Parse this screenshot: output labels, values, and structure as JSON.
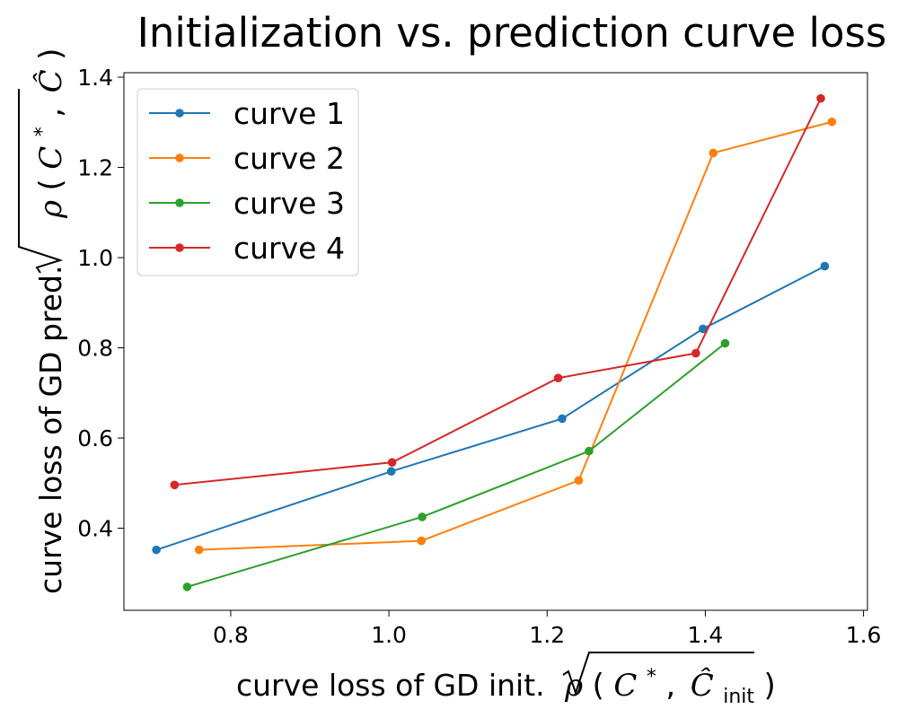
{
  "chart_data": {
    "type": "line",
    "title": "Initialization vs. prediction curve loss",
    "xlabel": {
      "text": "curve loss of GD init.",
      "formula": "√ρ(C*, Ĉinit)",
      "formula_parts": {
        "rho": "ρ",
        "c": "C",
        "star": "*",
        "comma": ",",
        "chat": "Ĉ",
        "sub": "init"
      }
    },
    "ylabel": {
      "text": "curve loss of GD pred.",
      "formula": "√ρ(C*, Ĉ)",
      "formula_parts": {
        "rho": "ρ",
        "c": "C",
        "star": "*",
        "comma": ",",
        "chat": "Ĉ"
      }
    },
    "xlim": [
      0.665,
      1.605
    ],
    "ylim": [
      0.218,
      1.41
    ],
    "xticks": [
      0.8,
      1.0,
      1.2,
      1.4,
      1.6
    ],
    "xtick_labels": [
      "0.8",
      "1.0",
      "1.2",
      "1.4",
      "1.6"
    ],
    "yticks": [
      0.4,
      0.6,
      0.8,
      1.0,
      1.2,
      1.4
    ],
    "ytick_labels": [
      "0.4",
      "0.6",
      "0.8",
      "1.0",
      "1.2",
      "1.4"
    ],
    "grid": false,
    "legend_position": "top-left",
    "series": [
      {
        "name": "curve 1",
        "color": "#1f77b4",
        "x": [
          0.706,
          1.003,
          1.219,
          1.397,
          1.551
        ],
        "y": [
          0.352,
          0.526,
          0.643,
          0.842,
          0.981
        ]
      },
      {
        "name": "curve 2",
        "color": "#ff7f0e",
        "x": [
          0.76,
          1.041,
          1.24,
          1.41,
          1.56
        ],
        "y": [
          0.352,
          0.372,
          0.506,
          1.232,
          1.301
        ]
      },
      {
        "name": "curve 3",
        "color": "#2ca02c",
        "x": [
          0.745,
          1.042,
          1.253,
          1.425
        ],
        "y": [
          0.27,
          0.425,
          0.571,
          0.81
        ]
      },
      {
        "name": "curve 4",
        "color": "#d62728",
        "x": [
          0.729,
          1.004,
          1.214,
          1.388,
          1.546
        ],
        "y": [
          0.496,
          0.546,
          0.733,
          0.788,
          1.353
        ]
      }
    ]
  }
}
